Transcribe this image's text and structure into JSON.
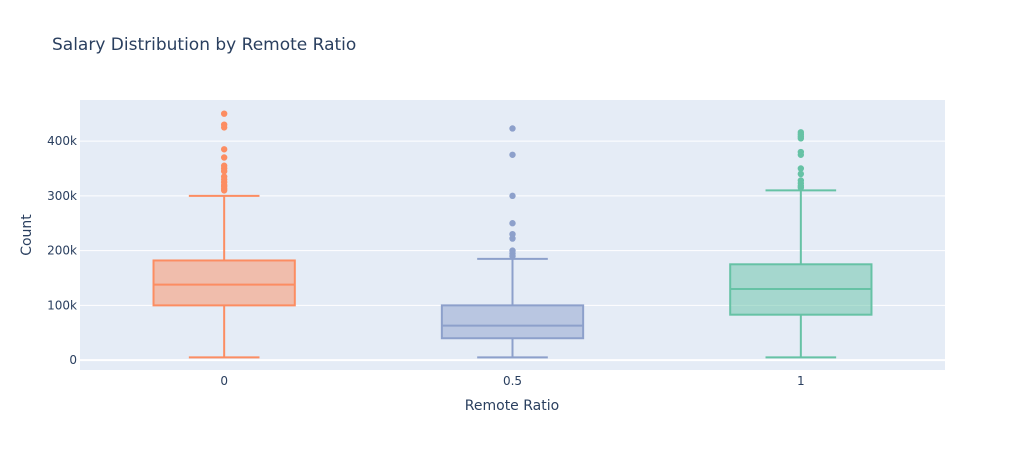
{
  "chart_data": {
    "type": "box",
    "title": "Salary Distribution by Remote Ratio",
    "xlabel": "Remote Ratio",
    "ylabel": "Count",
    "ylim": [
      -18000,
      475000
    ],
    "y_ticks": [
      0,
      100000,
      200000,
      300000,
      400000
    ],
    "y_tick_labels": [
      "0",
      "100k",
      "200k",
      "300k",
      "400k"
    ],
    "grid": true,
    "colors": {
      "plot_bg": "#e5ecf6",
      "grid": "#ffffff",
      "text": "#2a3f5f"
    },
    "categories": [
      "0",
      "0.5",
      "1"
    ],
    "boxes": [
      {
        "category": "0",
        "color": "#fc8d62",
        "whisker_low": 5000,
        "q1": 100000,
        "median": 138000,
        "q3": 182000,
        "whisker_high": 300000,
        "outliers": [
          450000,
          430000,
          425000,
          385000,
          370000,
          355000,
          350000,
          345000,
          335000,
          330000,
          325000,
          320000,
          317000,
          313000,
          310000
        ]
      },
      {
        "category": "0.5",
        "color": "#8da0cb",
        "whisker_low": 5000,
        "q1": 40000,
        "median": 63000,
        "q3": 100000,
        "whisker_high": 185000,
        "outliers": [
          423000,
          375000,
          300000,
          250000,
          230000,
          222000,
          200000,
          195000,
          190000
        ]
      },
      {
        "category": "1",
        "color": "#66c2a5",
        "whisker_low": 5000,
        "q1": 83000,
        "median": 130000,
        "q3": 175000,
        "whisker_high": 310000,
        "outliers": [
          416000,
          412000,
          408000,
          405000,
          380000,
          375000,
          350000,
          340000,
          328000,
          323000,
          318000,
          315000
        ]
      }
    ]
  }
}
